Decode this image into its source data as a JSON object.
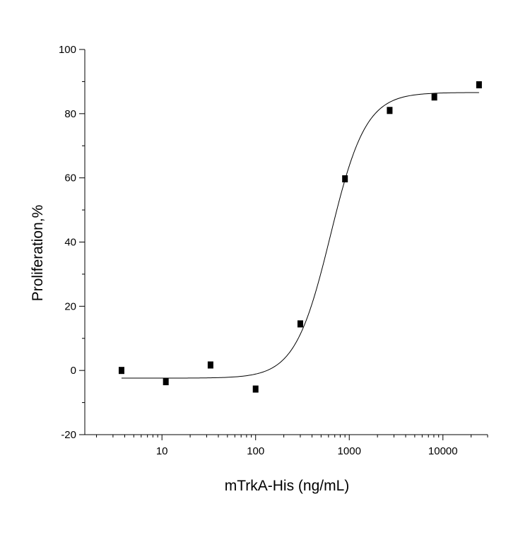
{
  "chart_data": {
    "type": "scatter",
    "title": "",
    "xlabel": "mTrkA-His (ng/mL)",
    "ylabel": "Proliferation,%",
    "xscale": "log",
    "xlim": [
      1.5,
      30000
    ],
    "ylim": [
      -20,
      100
    ],
    "x_ticks": [
      10,
      100,
      1000,
      10000
    ],
    "x_tick_labels": [
      "10",
      "100",
      "1000",
      "10000"
    ],
    "y_ticks": [
      -20,
      0,
      20,
      40,
      60,
      80,
      100
    ],
    "y_tick_labels": [
      "-20",
      "0",
      "20",
      "40",
      "60",
      "80",
      "100"
    ],
    "grid": false,
    "legend": "none",
    "colors": {
      "points": "#000000",
      "curve": "#000000",
      "axes": "#000000"
    },
    "series": [
      {
        "type": "scatter",
        "x": [
          3.7,
          11,
          33,
          100,
          300,
          900,
          2700,
          8100,
          24300
        ],
        "y": [
          0,
          -3.5,
          1.7,
          -5.8,
          14.5,
          59.7,
          81,
          85.2,
          89
        ]
      },
      {
        "type": "line",
        "fit": "four-parameter logistic",
        "bottom": -2.4,
        "top": 86.6,
        "ec50": 630,
        "hill": 2.3,
        "x_range": [
          3.7,
          24300
        ]
      }
    ]
  }
}
